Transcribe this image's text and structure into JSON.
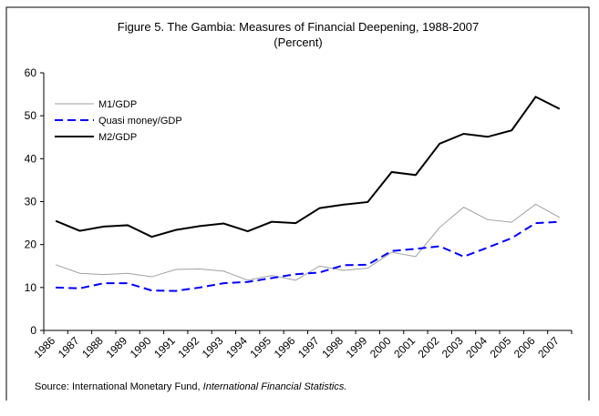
{
  "chart_data": {
    "type": "line",
    "title": "Figure 5. The Gambia: Measures of Financial Deepening, 1988-2007",
    "subtitle": "(Percent)",
    "categories": [
      "1986",
      "1987",
      "1988",
      "1989",
      "1990",
      "1991",
      "1992",
      "1993",
      "1994",
      "1995",
      "1996",
      "1997",
      "1998",
      "1999",
      "2000",
      "2001",
      "2002",
      "2003",
      "2004",
      "2005",
      "2006",
      "2007"
    ],
    "series": [
      {
        "name": "M1/GDP",
        "color": "#a0a0a0",
        "dash": "solid",
        "values": [
          15.3,
          13.3,
          13.0,
          13.3,
          12.5,
          14.2,
          14.3,
          13.8,
          11.7,
          12.8,
          11.7,
          15.0,
          14.0,
          14.5,
          18.2,
          17.2,
          24.0,
          28.7,
          25.8,
          25.2,
          29.4,
          26.3
        ]
      },
      {
        "name": "Quasi money/GDP",
        "color": "#0000ff",
        "dash": "dashed",
        "values": [
          10.0,
          9.8,
          11.0,
          11.0,
          9.3,
          9.2,
          10.0,
          11.0,
          11.3,
          12.2,
          13.1,
          13.5,
          15.2,
          15.3,
          18.5,
          19.0,
          19.6,
          17.2,
          19.3,
          21.5,
          25.0,
          25.3
        ]
      },
      {
        "name": "M2/GDP",
        "color": "#000000",
        "dash": "solid",
        "values": [
          25.5,
          23.2,
          24.2,
          24.5,
          21.8,
          23.4,
          24.3,
          24.9,
          23.1,
          25.3,
          25.0,
          28.5,
          29.3,
          29.9,
          36.9,
          36.2,
          43.5,
          45.8,
          45.1,
          46.6,
          54.4,
          51.6
        ]
      }
    ],
    "ylim": [
      0,
      60
    ],
    "yticks": [
      0,
      10,
      20,
      30,
      40,
      50,
      60
    ],
    "legend": "upper left",
    "source": "Source: International Monetary Fund, ",
    "source_italic": "International Financial Statistics."
  }
}
